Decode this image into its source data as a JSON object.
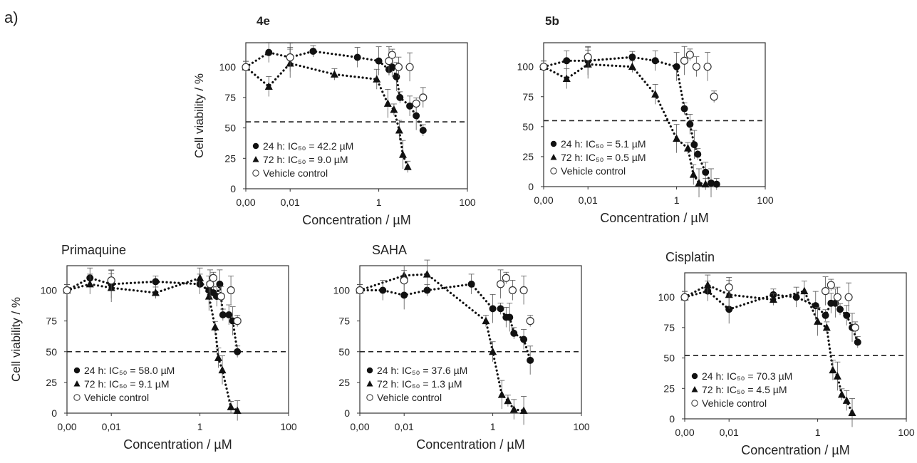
{
  "panel_label": "a)",
  "chart_data": [
    {
      "type": "scatter",
      "title": "4e",
      "xlabel": "Concentration / µM",
      "ylabel": "Cell viability / %",
      "x_scale": "log",
      "xlim": [
        0.001,
        100
      ],
      "x_ticks": [
        0.001,
        0.01,
        1,
        100
      ],
      "x_tick_labels": [
        "0,00",
        "0,01",
        "1",
        "100"
      ],
      "ylim": [
        0,
        120
      ],
      "y_ticks": [
        0,
        25,
        50,
        75,
        100
      ],
      "threshold_y": 55,
      "legend_position": "bottom-left",
      "series": [
        {
          "name": "24 h: IC₅₀ = 42.2 µM",
          "marker": "circle-filled",
          "x": [
            0.001,
            0.0033,
            0.01,
            0.033,
            0.33,
            1,
            1.7,
            2,
            2.5,
            3,
            5,
            7,
            10
          ],
          "y": [
            100,
            112,
            108,
            113,
            108,
            105,
            98,
            100,
            92,
            75,
            68,
            60,
            48
          ]
        },
        {
          "name": "72 h: IC₅₀ = 9.0 µM",
          "marker": "triangle-filled",
          "x": [
            0.001,
            0.0033,
            0.01,
            0.1,
            0.9,
            1.6,
            2.2,
            2.9,
            3.5,
            4.5
          ],
          "y": [
            100,
            84,
            103,
            94,
            90,
            70,
            65,
            48,
            28,
            18
          ]
        },
        {
          "name": "Vehicle control",
          "marker": "circle-open",
          "x": [
            0.001,
            0.01,
            1.7,
            2,
            2.8,
            5,
            7,
            10
          ],
          "y": [
            100,
            108,
            105,
            110,
            100,
            100,
            70,
            75
          ]
        }
      ]
    },
    {
      "type": "scatter",
      "title": "5b",
      "xlabel": "Concentration / µM",
      "ylabel": "",
      "x_scale": "log",
      "xlim": [
        0.001,
        100
      ],
      "x_ticks": [
        0.001,
        0.01,
        1,
        100
      ],
      "x_tick_labels": [
        "0,00",
        "0,01",
        "1",
        "100"
      ],
      "ylim": [
        0,
        120
      ],
      "y_ticks": [
        0,
        25,
        50,
        75,
        100
      ],
      "threshold_y": 55,
      "legend_position": "bottom-left",
      "series": [
        {
          "name": "24 h: IC₅₀ = 5.1 µM",
          "marker": "circle-filled",
          "x": [
            0.001,
            0.0033,
            0.01,
            0.1,
            0.33,
            1,
            1.5,
            2,
            2.5,
            3,
            4.5,
            6,
            8
          ],
          "y": [
            100,
            105,
            105,
            108,
            105,
            100,
            65,
            52,
            35,
            27,
            12,
            3,
            2
          ]
        },
        {
          "name": "72 h: IC₅₀ = 0.5 µM",
          "marker": "triangle-filled",
          "x": [
            0.001,
            0.0033,
            0.01,
            0.1,
            0.33,
            1,
            1.8,
            2.4,
            3.2,
            4.5
          ],
          "y": [
            100,
            90,
            102,
            100,
            77,
            40,
            32,
            10,
            3,
            2
          ]
        },
        {
          "name": "Vehicle control",
          "marker": "circle-open",
          "x": [
            0.001,
            0.01,
            1.5,
            2,
            2.8,
            5,
            7
          ],
          "y": [
            100,
            108,
            105,
            110,
            100,
            100,
            75
          ]
        }
      ]
    },
    {
      "type": "scatter",
      "title": "Primaquine",
      "xlabel": "Concentration / µM",
      "ylabel": "Cell viability / %",
      "x_scale": "log",
      "xlim": [
        0.001,
        100
      ],
      "x_ticks": [
        0.001,
        0.01,
        1,
        100
      ],
      "x_tick_labels": [
        "0,00",
        "0,01",
        "1",
        "100"
      ],
      "ylim": [
        0,
        120
      ],
      "y_ticks": [
        0,
        25,
        50,
        75,
        100
      ],
      "threshold_y": 50,
      "legend_position": "bottom-left",
      "series": [
        {
          "name": "24 h: IC₅₀ = 58.0 µM",
          "marker": "circle-filled",
          "x": [
            0.001,
            0.0033,
            0.01,
            0.1,
            1,
            1.6,
            2,
            2.4,
            2.8,
            3.3,
            4.5,
            5.5,
            7
          ],
          "y": [
            100,
            110,
            105,
            107,
            105,
            100,
            98,
            95,
            105,
            80,
            80,
            75,
            50
          ]
        },
        {
          "name": "72 h: IC₅₀ = 9.1 µM",
          "marker": "triangle-filled",
          "x": [
            0.001,
            0.0033,
            0.01,
            0.1,
            1,
            1.6,
            2.2,
            2.6,
            3.2,
            5,
            7
          ],
          "y": [
            100,
            105,
            102,
            98,
            110,
            95,
            70,
            45,
            35,
            5,
            2
          ]
        },
        {
          "name": "Vehicle control",
          "marker": "circle-open",
          "x": [
            0.001,
            0.01,
            1.7,
            2,
            3,
            5,
            7
          ],
          "y": [
            100,
            108,
            105,
            110,
            95,
            100,
            75
          ]
        }
      ]
    },
    {
      "type": "scatter",
      "title": "SAHA",
      "xlabel": "Concentration / µM",
      "ylabel": "",
      "x_scale": "log",
      "xlim": [
        0.001,
        100
      ],
      "x_ticks": [
        0.001,
        0.01,
        1,
        100
      ],
      "x_tick_labels": [
        "0,00",
        "0,01",
        "1",
        "100"
      ],
      "ylim": [
        0,
        120
      ],
      "y_ticks": [
        0,
        25,
        50,
        75,
        100
      ],
      "threshold_y": 50,
      "legend_position": "bottom-left",
      "series": [
        {
          "name": "24 h: IC₅₀ = 37.6 µM",
          "marker": "circle-filled",
          "x": [
            0.001,
            0.0033,
            0.01,
            0.033,
            0.33,
            1,
            1.5,
            2,
            2.4,
            3,
            5,
            7
          ],
          "y": [
            100,
            100,
            96,
            100,
            105,
            85,
            85,
            78,
            78,
            65,
            60,
            43
          ]
        },
        {
          "name": "72 h: IC₅₀ = 1.3 µM",
          "marker": "triangle-filled",
          "x": [
            0.001,
            0.01,
            0.033,
            0.7,
            1,
            1.6,
            2.2,
            3,
            5
          ],
          "y": [
            100,
            112,
            113,
            75,
            50,
            15,
            10,
            3,
            2
          ]
        },
        {
          "name": "Vehicle control",
          "marker": "circle-open",
          "x": [
            0.001,
            0.01,
            1.5,
            2,
            2.8,
            5,
            7
          ],
          "y": [
            100,
            108,
            105,
            110,
            100,
            100,
            75
          ]
        }
      ]
    },
    {
      "type": "scatter",
      "title": "Cisplatin",
      "xlabel": "Concentration / µM",
      "ylabel": "",
      "x_scale": "log",
      "xlim": [
        0.001,
        100
      ],
      "x_ticks": [
        0.001,
        0.01,
        1,
        100
      ],
      "x_tick_labels": [
        "0,00",
        "0,01",
        "1",
        "100"
      ],
      "ylim": [
        0,
        120
      ],
      "y_ticks": [
        0,
        25,
        50,
        75,
        100
      ],
      "threshold_y": 52,
      "legend_position": "bottom-left",
      "series": [
        {
          "name": "24 h: IC₅₀ = 70.3 µM",
          "marker": "circle-filled",
          "x": [
            0.001,
            0.0033,
            0.01,
            0.1,
            0.33,
            0.9,
            1.5,
            2,
            2.5,
            3.2,
            4.5,
            6,
            8
          ],
          "y": [
            100,
            105,
            90,
            102,
            100,
            93,
            85,
            95,
            95,
            90,
            85,
            75,
            63
          ]
        },
        {
          "name": "72 h: IC₅₀ = 4.5 µM",
          "marker": "triangle-filled",
          "x": [
            0.001,
            0.0033,
            0.01,
            0.1,
            0.5,
            1,
            1.6,
            2.2,
            2.8,
            3.5,
            4.5,
            6
          ],
          "y": [
            100,
            110,
            102,
            98,
            105,
            80,
            75,
            40,
            35,
            20,
            15,
            5
          ]
        },
        {
          "name": "Vehicle control",
          "marker": "circle-open",
          "x": [
            0.001,
            0.01,
            1.5,
            2,
            2.8,
            5,
            7
          ],
          "y": [
            100,
            108,
            105,
            110,
            100,
            100,
            75
          ]
        }
      ]
    }
  ]
}
